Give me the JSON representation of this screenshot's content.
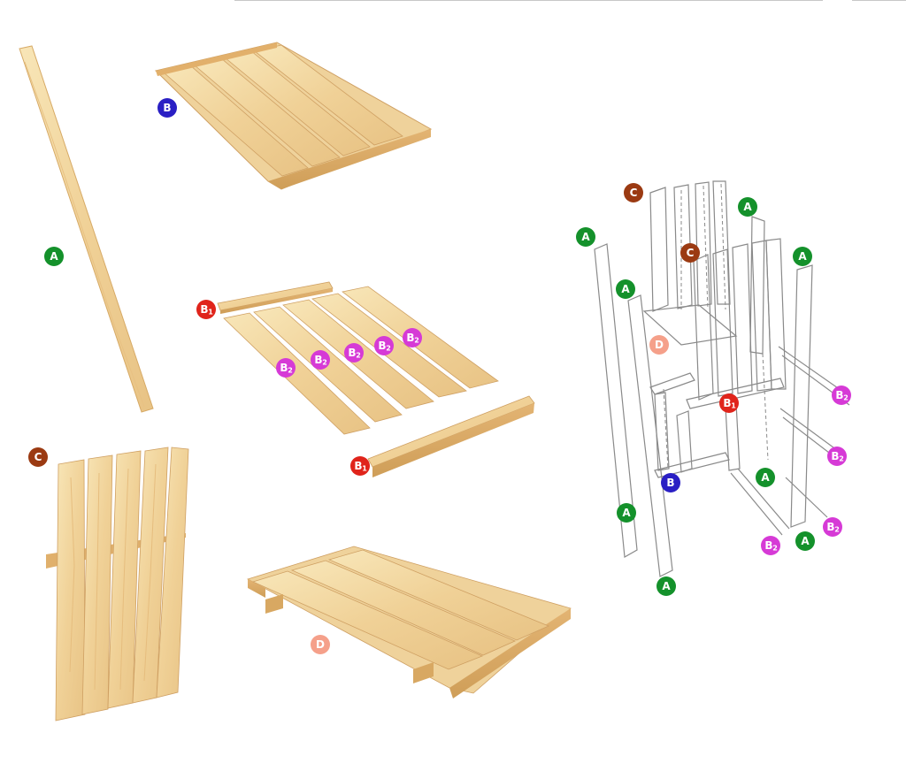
{
  "colors": {
    "wood_light": "#f6e0ae",
    "wood_mid": "#ecc98a",
    "wood_dark": "#d9ad68",
    "grain": "#e4b877",
    "edge": "#c9984f",
    "A": "#14912b",
    "B": "#2a1fc4",
    "B1": "#e0241b",
    "B2": "#d63ad6",
    "C": "#9b3a12",
    "D": "#f5a08a"
  },
  "parts": {
    "A": {
      "letter": "A",
      "sub": ""
    },
    "B": {
      "letter": "B",
      "sub": ""
    },
    "B1": {
      "letter": "B",
      "sub": "1"
    },
    "B2": {
      "letter": "B",
      "sub": "2"
    },
    "C": {
      "letter": "C",
      "sub": ""
    },
    "D": {
      "letter": "D",
      "sub": ""
    }
  }
}
